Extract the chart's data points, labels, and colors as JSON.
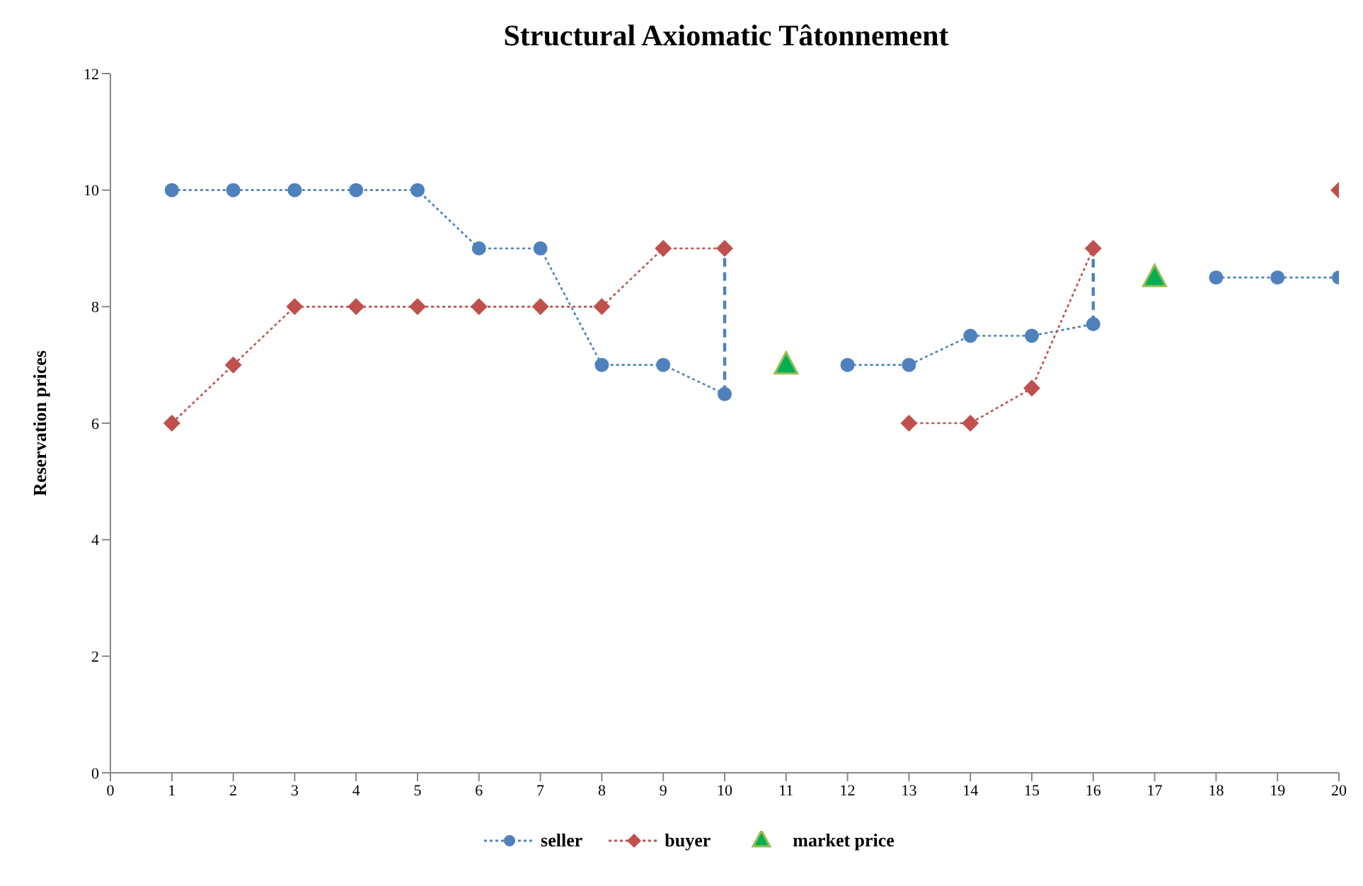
{
  "chart_data": {
    "type": "line",
    "title": "Structural Axiomatic Tâtonnement",
    "ylabel": "Reservation prices",
    "xlim": [
      0,
      20
    ],
    "xticks": [
      0,
      1,
      2,
      3,
      4,
      5,
      6,
      7,
      8,
      9,
      10,
      11,
      12,
      13,
      14,
      15,
      16,
      17,
      18,
      19,
      20
    ],
    "ylim": [
      0,
      12
    ],
    "yticks": [
      0,
      2,
      4,
      6,
      8,
      10,
      12
    ],
    "legend": "bottom",
    "series": [
      {
        "name": "seller",
        "color": "#4f81bd",
        "marker": "circle",
        "line_style": "dotted",
        "x": [
          1,
          2,
          3,
          4,
          5,
          6,
          7,
          8,
          9,
          10,
          11,
          12,
          13,
          14,
          15,
          16,
          17,
          18,
          19,
          20
        ],
        "values": [
          10,
          10,
          10,
          10,
          10,
          9,
          9,
          7,
          7,
          6.5,
          null,
          7,
          7,
          7.5,
          7.5,
          7.7,
          null,
          8.5,
          8.5,
          8.5
        ]
      },
      {
        "name": "buyer",
        "color": "#c0504d",
        "marker": "diamond",
        "line_style": "dotted",
        "x": [
          1,
          2,
          3,
          4,
          5,
          6,
          7,
          8,
          9,
          10,
          11,
          13,
          14,
          15,
          16,
          17,
          20
        ],
        "values": [
          6,
          7,
          8,
          8,
          8,
          8,
          8,
          8,
          9,
          9,
          null,
          6,
          6,
          6.6,
          9,
          null,
          10
        ]
      },
      {
        "name": "market price",
        "type": "scatter",
        "color": "#00b050",
        "marker": "triangle",
        "x": [
          11,
          17
        ],
        "values": [
          7,
          8.5
        ]
      },
      {
        "type": "line",
        "color": "#4f81bd",
        "marker": "none",
        "line_style": "dashed",
        "x": [
          10,
          10
        ],
        "values": [
          6.5,
          9
        ]
      },
      {
        "type": "line",
        "color": "#4f81bd",
        "marker": "none",
        "line_style": "dashed",
        "x": [
          16,
          16
        ],
        "values": [
          7.7,
          9
        ]
      }
    ]
  }
}
